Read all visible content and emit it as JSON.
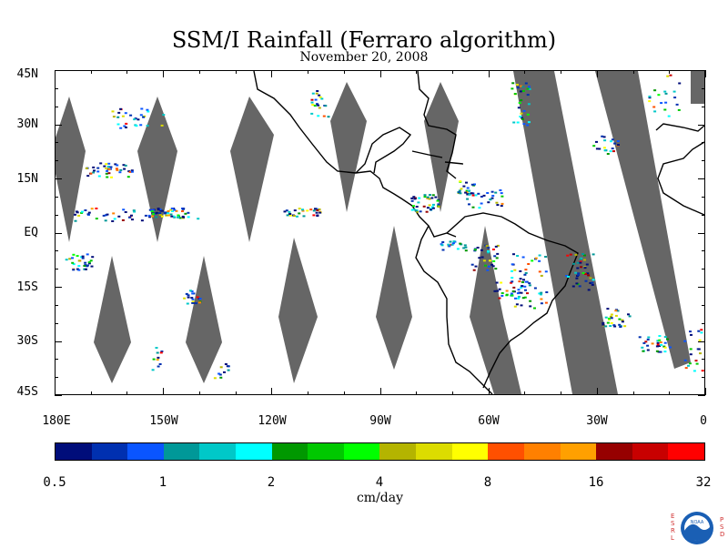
{
  "header": {
    "title": "SSM/I Rainfall (Ferraro algorithm)",
    "subtitle": "November 20, 2008"
  },
  "map": {
    "projection": "equirectangular",
    "lon_range": [
      -180,
      0
    ],
    "lat_range": [
      -45,
      45
    ],
    "swath_gap_color": "#666666",
    "lat_labels": [
      "45N",
      "30N",
      "15N",
      "EQ",
      "15S",
      "30S",
      "45S"
    ],
    "lon_labels": [
      "180E",
      "150W",
      "120W",
      "90W",
      "60W",
      "30W",
      "0"
    ]
  },
  "colorbar": {
    "colors": [
      "#000d7a",
      "#0030b0",
      "#0a55ff",
      "#009898",
      "#00c8c8",
      "#00ffff",
      "#009800",
      "#00c800",
      "#00ff00",
      "#b4b400",
      "#dcdc00",
      "#ffff00",
      "#ff5000",
      "#ff8000",
      "#ffa000",
      "#960000",
      "#c80000",
      "#ff0000"
    ],
    "tick_labels": [
      "0.5",
      "1",
      "2",
      "4",
      "8",
      "16",
      "32"
    ],
    "units": "cm/day"
  },
  "logo": {
    "left_letters": "ESRL",
    "right_letters": "PSD",
    "center_text": "NOAA"
  }
}
